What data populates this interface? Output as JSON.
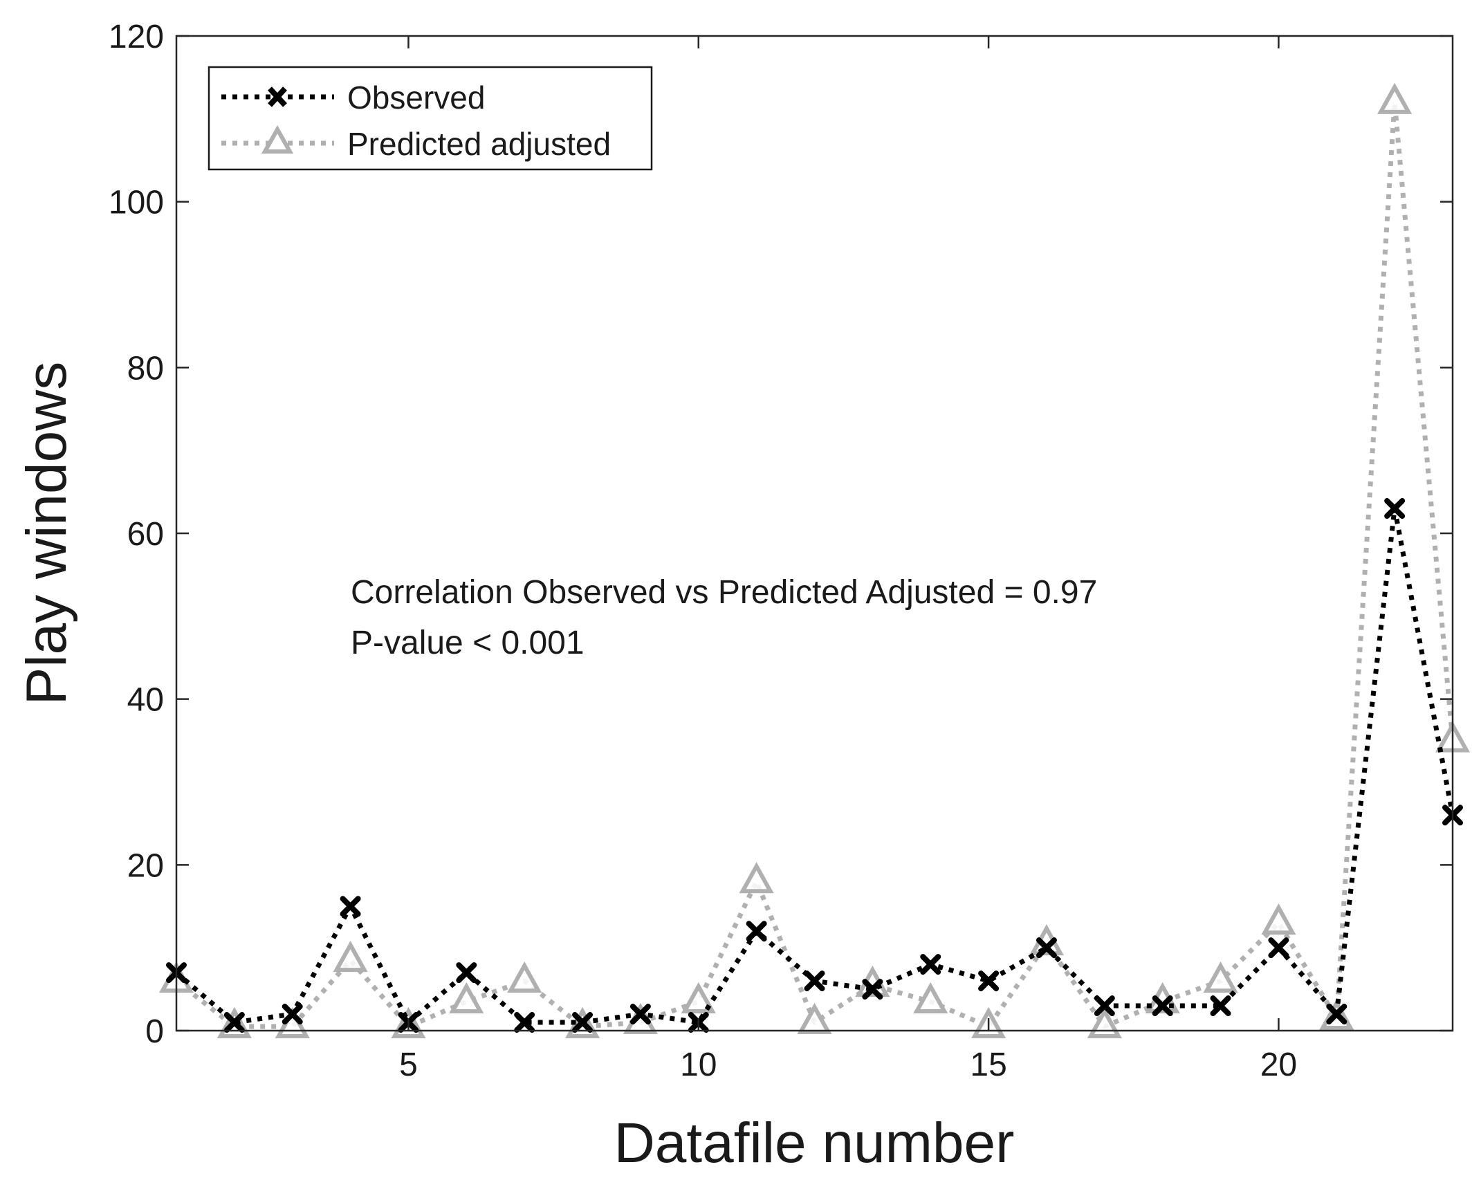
{
  "chart_data": {
    "type": "line",
    "title": "",
    "xlabel": "Datafile number",
    "ylabel": "Play windows",
    "xlim": [
      1,
      23
    ],
    "ylim": [
      0,
      120
    ],
    "xticks": [
      5,
      10,
      15,
      20
    ],
    "yticks": [
      0,
      20,
      40,
      60,
      80,
      100,
      120
    ],
    "grid": false,
    "legend_position": "top-left",
    "x": [
      1,
      2,
      3,
      4,
      5,
      6,
      7,
      8,
      9,
      10,
      11,
      12,
      13,
      14,
      15,
      16,
      17,
      18,
      19,
      20,
      21,
      22,
      23
    ],
    "series": [
      {
        "name": "Observed",
        "color": "#000000",
        "marker": "x",
        "values": [
          7,
          1,
          2,
          15,
          1,
          7,
          1,
          1,
          2,
          1,
          12,
          6,
          5,
          8,
          6,
          10,
          3,
          3,
          3,
          10,
          2,
          63,
          26
        ]
      },
      {
        "name": "Predicted adjusted",
        "color": "#b0b0b0",
        "marker": "triangle",
        "values": [
          6,
          0.5,
          0.5,
          8.5,
          0.5,
          3.5,
          6,
          0.5,
          1,
          3.5,
          18,
          1,
          5.5,
          3.5,
          0.5,
          10.5,
          0.5,
          3.5,
          6,
          13,
          1.5,
          112,
          35
        ]
      }
    ],
    "annotations": [
      "Correlation Observed vs Predicted Adjusted = 0.97",
      "P-value < 0.001"
    ]
  }
}
